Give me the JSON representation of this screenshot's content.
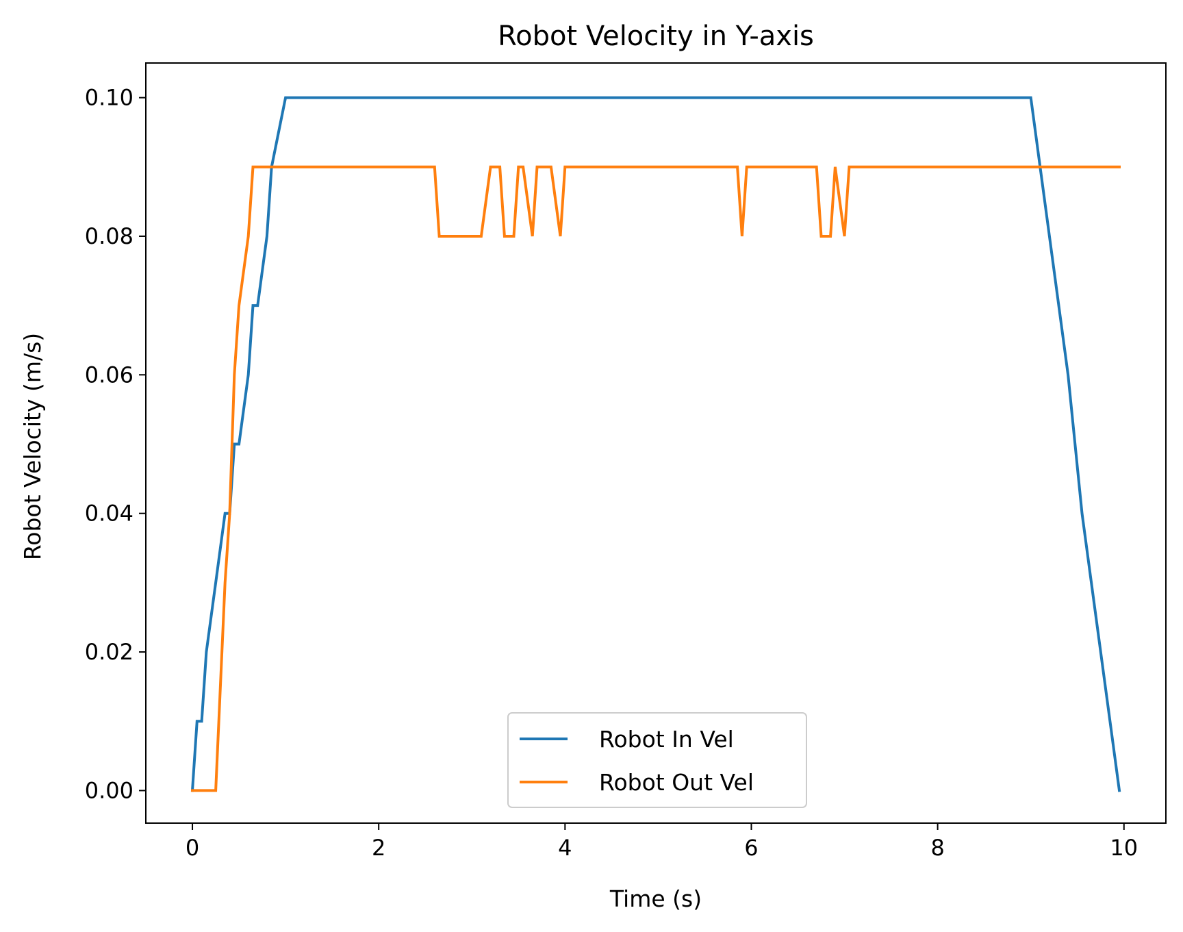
{
  "chart_data": {
    "type": "line",
    "title": "Robot Velocity in Y-axis",
    "xlabel": "Time (s)",
    "ylabel": "Robot Velocity (m/s)",
    "xlim": [
      -0.5,
      10.45
    ],
    "ylim": [
      -0.0047,
      0.105
    ],
    "xticks": [
      0,
      2,
      4,
      6,
      8,
      10
    ],
    "xtick_labels": [
      "0",
      "2",
      "4",
      "6",
      "8",
      "10"
    ],
    "yticks": [
      0.0,
      0.02,
      0.04,
      0.06,
      0.08,
      0.1
    ],
    "ytick_labels": [
      "0.00",
      "0.02",
      "0.04",
      "0.06",
      "0.08",
      "0.10"
    ],
    "grid": false,
    "legend_position": "lower center",
    "series": [
      {
        "name": "Robot In Vel",
        "color": "#1f77b4",
        "points": [
          [
            0.0,
            0.0
          ],
          [
            0.05,
            0.01
          ],
          [
            0.1,
            0.01
          ],
          [
            0.15,
            0.02
          ],
          [
            0.25,
            0.03
          ],
          [
            0.35,
            0.04
          ],
          [
            0.4,
            0.04
          ],
          [
            0.45,
            0.05
          ],
          [
            0.5,
            0.05
          ],
          [
            0.6,
            0.06
          ],
          [
            0.65,
            0.07
          ],
          [
            0.7,
            0.07
          ],
          [
            0.8,
            0.08
          ],
          [
            0.85,
            0.09
          ],
          [
            1.0,
            0.1
          ],
          [
            9.0,
            0.1
          ],
          [
            9.1,
            0.09
          ],
          [
            9.4,
            0.06
          ],
          [
            9.55,
            0.04
          ],
          [
            9.95,
            0.0
          ]
        ]
      },
      {
        "name": "Robot Out Vel",
        "color": "#ff7f0e",
        "points": [
          [
            0.0,
            0.0
          ],
          [
            0.25,
            0.0
          ],
          [
            0.35,
            0.03
          ],
          [
            0.4,
            0.04
          ],
          [
            0.45,
            0.06
          ],
          [
            0.5,
            0.07
          ],
          [
            0.6,
            0.08
          ],
          [
            0.65,
            0.09
          ],
          [
            2.6,
            0.09
          ],
          [
            2.65,
            0.08
          ],
          [
            3.1,
            0.08
          ],
          [
            3.2,
            0.09
          ],
          [
            3.3,
            0.09
          ],
          [
            3.35,
            0.08
          ],
          [
            3.45,
            0.08
          ],
          [
            3.5,
            0.09
          ],
          [
            3.55,
            0.09
          ],
          [
            3.65,
            0.08
          ],
          [
            3.7,
            0.09
          ],
          [
            3.85,
            0.09
          ],
          [
            3.95,
            0.08
          ],
          [
            4.0,
            0.09
          ],
          [
            5.85,
            0.09
          ],
          [
            5.9,
            0.08
          ],
          [
            5.95,
            0.09
          ],
          [
            6.7,
            0.09
          ],
          [
            6.75,
            0.08
          ],
          [
            6.85,
            0.08
          ],
          [
            6.9,
            0.09
          ],
          [
            7.0,
            0.08
          ],
          [
            7.05,
            0.09
          ],
          [
            9.95,
            0.09
          ]
        ]
      }
    ]
  }
}
